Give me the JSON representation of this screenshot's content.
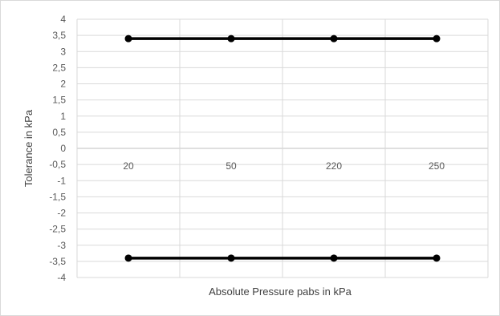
{
  "chart_data": {
    "type": "line",
    "title": "",
    "xlabel": "Absolute Pressure pabs in kPa",
    "ylabel": "Tolerance in kPa",
    "categories": [
      "20",
      "50",
      "220",
      "250"
    ],
    "series": [
      {
        "values": [
          3.4,
          3.4,
          3.4,
          3.4
        ]
      },
      {
        "values": [
          -3.4,
          -3.4,
          -3.4,
          -3.4
        ]
      }
    ],
    "ylim": [
      -4,
      4
    ],
    "ystep": 0.5,
    "y_tick_labels": [
      "4",
      "3,5",
      "3",
      "2,5",
      "2",
      "1,5",
      "1",
      "0,5",
      "0",
      "-0,5",
      "-1",
      "-1,5",
      "-2",
      "-2,5",
      "-3",
      "-3,5",
      "-4"
    ],
    "grid": {
      "horizontal": true,
      "vertical": true
    },
    "legend": "none",
    "colors": {
      "series": "#000000",
      "grid": "#d9d9d9",
      "axis_zero": "#bfbfbf",
      "text": "#595959"
    }
  }
}
